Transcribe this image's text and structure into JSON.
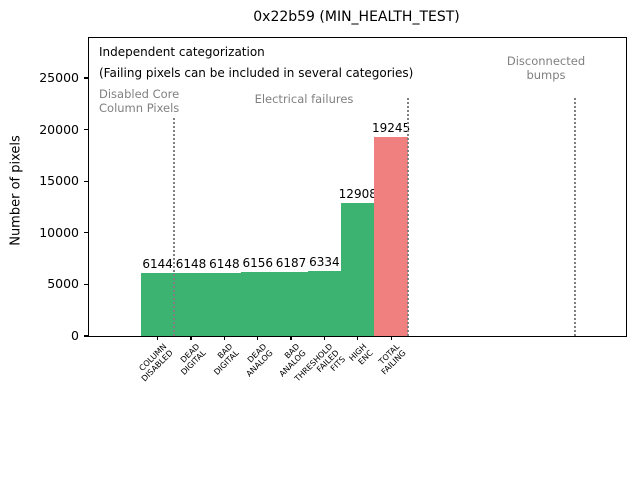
{
  "annotations": {
    "heading": "Independent categorization",
    "subheading": "(Failing pixels can be included in several categories)",
    "zones": [
      {
        "name": "disabled-core-column-pixels",
        "lines": [
          "Disabled Core",
          "Column Pixels"
        ]
      },
      {
        "name": "electrical-failures",
        "lines": [
          "Electrical failures"
        ]
      },
      {
        "name": "disconnected-bumps",
        "lines": [
          "Disconnected",
          "bumps"
        ]
      }
    ]
  },
  "chart_data": {
    "type": "bar",
    "title": "0x22b59 (MIN_HEALTH_TEST)",
    "xlabel": "",
    "ylabel": "Number of pixels",
    "categories": [
      "COLUMN DISABLED",
      "DEAD DIGITAL",
      "BAD DIGITAL",
      "DEAD ANALOG",
      "BAD ANALOG",
      "THRESHOLD FAILED FITS",
      "HIGH ENC",
      "TOTAL FAILING"
    ],
    "category_label_lines": [
      [
        "COLUMN",
        "DISABLED"
      ],
      [
        "DEAD",
        "DIGITAL"
      ],
      [
        "BAD",
        "DIGITAL"
      ],
      [
        "DEAD",
        "ANALOG"
      ],
      [
        "BAD",
        "ANALOG"
      ],
      [
        "THRESHOLD",
        "FAILED",
        "FITS"
      ],
      [
        "HIGH",
        "ENC"
      ],
      [
        "TOTAL",
        "FAILING"
      ]
    ],
    "values": [
      6144,
      6148,
      6148,
      6156,
      6187,
      6334,
      12908,
      19245
    ],
    "bar_labels": [
      "6144",
      "6148",
      "6148",
      "6156",
      "6187",
      "6334",
      "12908",
      "19245"
    ],
    "bar_colors": [
      "#3cb371",
      "#3cb371",
      "#3cb371",
      "#3cb371",
      "#3cb371",
      "#3cb371",
      "#3cb371",
      "#f08080"
    ],
    "yticks": [
      0,
      5000,
      10000,
      15000,
      20000,
      25000
    ],
    "ylim": [
      0,
      28900
    ],
    "xlim": [
      -2,
      14.1
    ],
    "separators_x": [
      0.5,
      7.5,
      12.5
    ],
    "grid": false,
    "legend": null,
    "annotations": [
      "Independent categorization",
      "(Failing pixels can be included in several categories)",
      "Disabled Core Column Pixels",
      "Electrical failures",
      "Disconnected bumps"
    ]
  },
  "colors": {
    "bar_green": "#3cb371",
    "bar_red": "#f08080",
    "muted_text": "#808080",
    "separator": "#808080",
    "axis": "#000000",
    "background": "#ffffff"
  }
}
